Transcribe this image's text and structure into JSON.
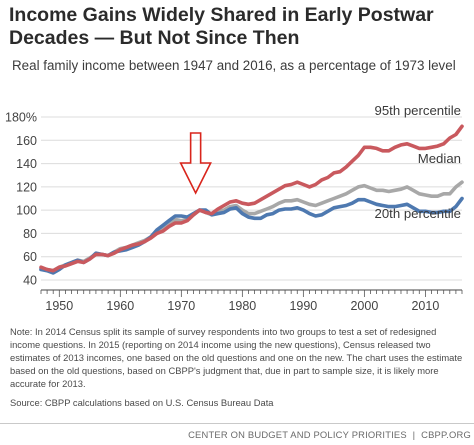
{
  "header": {
    "title_line1": "Income Gains Widely Shared in Early Postwar",
    "title_line2": "Decades — But Not Since Then",
    "subtitle": "Real family income between 1947 and 2016, as a percentage of 1973 level"
  },
  "chart_data": {
    "type": "line",
    "title": "Income Gains Widely Shared in Early Postwar Decades — But Not Since Then",
    "subtitle": "Real family income between 1947 and 2016, as a percentage of 1973 level",
    "xlim": [
      1947,
      2016
    ],
    "ylim": [
      40,
      180
    ],
    "x_ticks": [
      1950,
      1960,
      1970,
      1980,
      1990,
      2000,
      2010
    ],
    "y_ticks": [
      {
        "value": 40,
        "label": "40"
      },
      {
        "value": 60,
        "label": "60"
      },
      {
        "value": 80,
        "label": "80"
      },
      {
        "value": 100,
        "label": "100"
      },
      {
        "value": 120,
        "label": "120"
      },
      {
        "value": 140,
        "label": "140"
      },
      {
        "value": 160,
        "label": "160"
      },
      {
        "value": 180,
        "label": "180%"
      }
    ],
    "grid": "horizontal",
    "annotation": {
      "type": "arrow",
      "x": 1973,
      "color": "#d9251c"
    },
    "series": [
      {
        "name": "95th percentile",
        "color": "#c9595e",
        "x": [
          1947,
          1948,
          1949,
          1950,
          1951,
          1952,
          1953,
          1954,
          1955,
          1956,
          1957,
          1958,
          1959,
          1960,
          1961,
          1962,
          1963,
          1964,
          1965,
          1966,
          1967,
          1968,
          1969,
          1970,
          1971,
          1972,
          1973,
          1974,
          1975,
          1976,
          1977,
          1978,
          1979,
          1980,
          1981,
          1982,
          1983,
          1984,
          1985,
          1986,
          1987,
          1988,
          1989,
          1990,
          1991,
          1992,
          1993,
          1994,
          1995,
          1996,
          1997,
          1998,
          1999,
          2000,
          2001,
          2002,
          2003,
          2004,
          2005,
          2006,
          2007,
          2008,
          2009,
          2010,
          2011,
          2012,
          2013,
          2014,
          2015,
          2016
        ],
        "values": [
          51,
          49,
          48,
          51,
          52,
          54,
          56,
          55,
          58,
          62,
          62,
          61,
          63,
          66,
          68,
          70,
          71,
          73,
          76,
          80,
          82,
          86,
          89,
          89,
          91,
          96,
          100,
          98,
          97,
          101,
          104,
          107,
          108,
          106,
          105,
          106,
          109,
          112,
          115,
          118,
          121,
          122,
          124,
          122,
          120,
          122,
          126,
          128,
          132,
          133,
          137,
          142,
          147,
          154,
          154,
          153,
          151,
          151,
          154,
          156,
          157,
          155,
          153,
          153,
          154,
          155,
          157,
          162,
          165,
          172
        ]
      },
      {
        "name": "Median",
        "color": "#a8a8a8",
        "x": [
          1947,
          1948,
          1949,
          1950,
          1951,
          1952,
          1953,
          1954,
          1955,
          1956,
          1957,
          1958,
          1959,
          1960,
          1961,
          1962,
          1963,
          1964,
          1965,
          1966,
          1967,
          1968,
          1969,
          1970,
          1971,
          1972,
          1973,
          1974,
          1975,
          1976,
          1977,
          1978,
          1979,
          1980,
          1981,
          1982,
          1983,
          1984,
          1985,
          1986,
          1987,
          1988,
          1989,
          1990,
          1991,
          1992,
          1993,
          1994,
          1995,
          1996,
          1997,
          1998,
          1999,
          2000,
          2001,
          2002,
          2003,
          2004,
          2005,
          2006,
          2007,
          2008,
          2009,
          2010,
          2011,
          2012,
          2013,
          2014,
          2015,
          2016
        ],
        "values": [
          50,
          49,
          48,
          51,
          53,
          55,
          57,
          56,
          59,
          62,
          62,
          61,
          64,
          67,
          68,
          70,
          72,
          74,
          77,
          81,
          84,
          88,
          92,
          91,
          92,
          96,
          100,
          98,
          96,
          99,
          100,
          103,
          104,
          100,
          97,
          97,
          99,
          101,
          103,
          106,
          108,
          108,
          109,
          107,
          105,
          104,
          106,
          108,
          110,
          112,
          114,
          117,
          120,
          121,
          119,
          117,
          117,
          116,
          117,
          118,
          120,
          117,
          114,
          113,
          112,
          112,
          114,
          114,
          120,
          124
        ]
      },
      {
        "name": "20th percentile",
        "color": "#4e79b0",
        "x": [
          1947,
          1948,
          1949,
          1950,
          1951,
          1952,
          1953,
          1954,
          1955,
          1956,
          1957,
          1958,
          1959,
          1960,
          1961,
          1962,
          1963,
          1964,
          1965,
          1966,
          1967,
          1968,
          1969,
          1970,
          1971,
          1972,
          1973,
          1974,
          1975,
          1976,
          1977,
          1978,
          1979,
          1980,
          1981,
          1982,
          1983,
          1984,
          1985,
          1986,
          1987,
          1988,
          1989,
          1990,
          1991,
          1992,
          1993,
          1994,
          1995,
          1996,
          1997,
          1998,
          1999,
          2000,
          2001,
          2002,
          2003,
          2004,
          2005,
          2006,
          2007,
          2008,
          2009,
          2010,
          2011,
          2012,
          2013,
          2014,
          2015,
          2016
        ],
        "values": [
          49,
          48,
          46,
          49,
          53,
          55,
          57,
          55,
          58,
          63,
          62,
          61,
          64,
          65,
          66,
          68,
          70,
          73,
          77,
          83,
          87,
          91,
          95,
          95,
          94,
          97,
          100,
          100,
          96,
          97,
          98,
          101,
          102,
          97,
          94,
          93,
          93,
          96,
          97,
          100,
          101,
          101,
          102,
          100,
          97,
          95,
          96,
          99,
          102,
          103,
          104,
          106,
          109,
          109,
          107,
          105,
          104,
          103,
          103,
          104,
          105,
          102,
          99,
          99,
          98,
          98,
          99,
          99,
          103,
          110
        ]
      }
    ],
    "legend": [
      {
        "series": "95th percentile",
        "label": "95th percentile"
      },
      {
        "series": "Median",
        "label": "Median"
      },
      {
        "series": "20th percentile",
        "label": "20th percentile"
      }
    ]
  },
  "notes": {
    "note": "Note: In 2014 Census split its sample of survey respondents into two groups to test a set of redesigned income questions.  In 2015 (reporting on 2014 income using the new questions), Census released two estimates of 2013 incomes, one based on the old questions and one on the new.  The chart uses the estimate based on the old questions, based on CBPP's judgment that, due in part to sample size, it is likely more accurate for 2013.",
    "source": "Source: CBPP calculations based on U.S. Census Bureau Data"
  },
  "footer": {
    "org": "CENTER ON BUDGET AND POLICY PRIORITIES",
    "separator": "|",
    "site": "CBPP.ORG"
  }
}
